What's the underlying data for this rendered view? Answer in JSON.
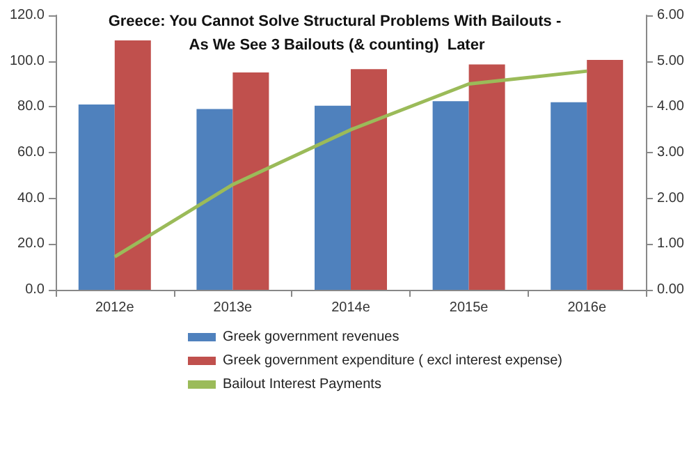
{
  "chart_data": {
    "type": "bar",
    "title": "Greece: You Cannot Solve Structural Problems With Bailouts - As We See 3 Bailouts (& counting)  Later",
    "categories": [
      "2012e",
      "2013e",
      "2014e",
      "2015e",
      "2016e"
    ],
    "series": [
      {
        "name": "Greek government revenues",
        "color": "#4f81bd",
        "values": [
          81,
          79,
          80.5,
          82.5,
          82
        ]
      },
      {
        "name": "Greek government expenditure ( excl interest expense)",
        "color": "#c0504d",
        "values": [
          109,
          95,
          96.5,
          98.5,
          100.5
        ]
      },
      {
        "name": "Bailout Interest Payments",
        "type": "line",
        "axis": "y2",
        "color": "#9bbb59",
        "marker": "none",
        "values": [
          0.72,
          2.3,
          3.5,
          4.5,
          4.78
        ]
      }
    ],
    "ylim": [
      0,
      120
    ],
    "yticks": [
      {
        "value": 0,
        "label": "0.0"
      },
      {
        "value": 20,
        "label": "20.0"
      },
      {
        "value": 40,
        "label": "40.0"
      },
      {
        "value": 60,
        "label": "60.0"
      },
      {
        "value": 80,
        "label": "80.0"
      },
      {
        "value": 100,
        "label": "100.0"
      },
      {
        "value": 120,
        "label": "120.0"
      }
    ],
    "y2lim": [
      0,
      6
    ],
    "y2ticks": [
      {
        "value": 0,
        "label": "0.00"
      },
      {
        "value": 1,
        "label": "1.00"
      },
      {
        "value": 2,
        "label": "2.00"
      },
      {
        "value": 3,
        "label": "3.00"
      },
      {
        "value": 4,
        "label": "4.00"
      },
      {
        "value": 5,
        "label": "5.00"
      },
      {
        "value": 6,
        "label": "6.00"
      }
    ],
    "grid": false,
    "legend": "bottom"
  }
}
